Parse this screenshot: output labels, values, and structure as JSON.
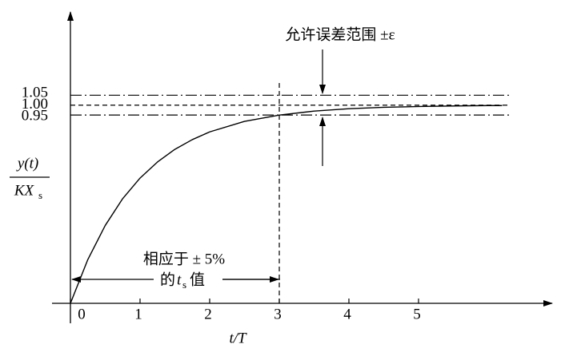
{
  "chart_data": {
    "type": "line",
    "xlabel": "t/T",
    "ylabel": {
      "numerator": "y(t)",
      "denominator": "KX",
      "subscript": "s"
    },
    "x": [
      0,
      0.25,
      0.5,
      0.75,
      1,
      1.25,
      1.5,
      1.75,
      2,
      2.5,
      3,
      3.5,
      4,
      4.5,
      5,
      5.5,
      6,
      6.2
    ],
    "series": [
      {
        "color": "#000000",
        "values": [
          0,
          0.221,
          0.393,
          0.528,
          0.632,
          0.713,
          0.777,
          0.826,
          0.865,
          0.918,
          0.95,
          0.97,
          0.982,
          0.989,
          0.993,
          0.996,
          0.998,
          0.998
        ]
      }
    ],
    "xlim": [
      0,
      6.92
    ],
    "ylim": [
      0,
      1.43
    ],
    "xticks": [
      0,
      1,
      2,
      3,
      4,
      5
    ],
    "yticks": [
      0.95,
      {
        "value": 1.0,
        "label": "1.00"
      },
      1.05
    ],
    "ytick_line_styles": [
      "dash-dot",
      "dashed",
      "dash-dot"
    ],
    "settling_time": 3,
    "annotations": {
      "tolerance": "允许误差范围 ±ε",
      "response_line1": "相应于 ± 5%",
      "response_prefix": "的",
      "response_t": "t",
      "response_sub": "s",
      "response_suffix": "值"
    }
  }
}
